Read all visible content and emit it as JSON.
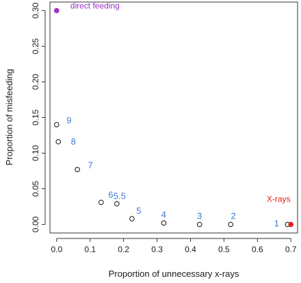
{
  "chart_data": {
    "type": "scatter",
    "xlabel": "Proportion of unnecessary x-rays",
    "ylabel": "Proportion of misfeeding",
    "xlim": [
      -0.02,
      0.72
    ],
    "ylim": [
      -0.012,
      0.312
    ],
    "x_ticks": [
      "0.0",
      "0.1",
      "0.2",
      "0.3",
      "0.4",
      "0.5",
      "0.6",
      "0.7"
    ],
    "y_ticks": [
      "0.00",
      "0.05",
      "0.10",
      "0.15",
      "0.20",
      "0.25",
      "0.30"
    ],
    "grid": false,
    "points": [
      {
        "label": "9",
        "x": 0.0,
        "y": 0.14
      },
      {
        "label": "8",
        "x": 0.005,
        "y": 0.116
      },
      {
        "label": "7",
        "x": 0.062,
        "y": 0.077
      },
      {
        "label": "6",
        "x": 0.133,
        "y": 0.031
      },
      {
        "label": "5.5",
        "x": 0.18,
        "y": 0.029
      },
      {
        "label": "5",
        "x": 0.225,
        "y": 0.008
      },
      {
        "label": "4",
        "x": 0.32,
        "y": 0.002
      },
      {
        "label": "3",
        "x": 0.427,
        "y": 0.0
      },
      {
        "label": "2",
        "x": 0.52,
        "y": 0.0
      },
      {
        "label": "1",
        "x": 0.69,
        "y": 0.0
      }
    ],
    "annotations": [
      {
        "label": "direct feeding",
        "x": 0.0,
        "y": 0.3,
        "color": "#9b30c8"
      },
      {
        "label": "X-rays",
        "x": 0.7,
        "y": 0.0,
        "color": "#e0201a"
      }
    ],
    "colors": {
      "point_label": "#3a7bd5",
      "axis": "#333333"
    }
  }
}
